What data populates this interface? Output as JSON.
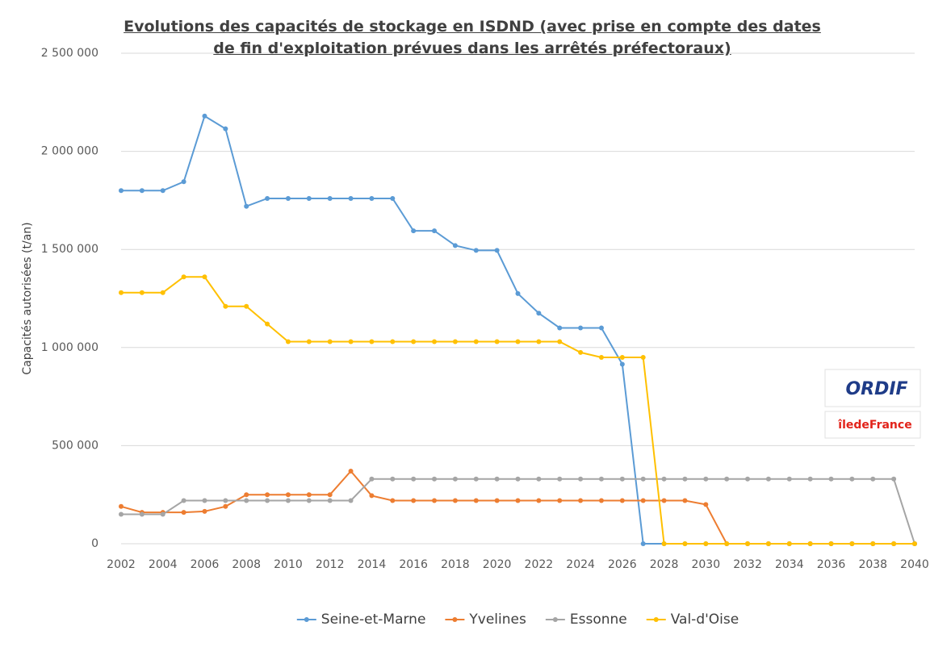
{
  "chart_data": {
    "type": "line",
    "title": "Evolutions des capacités de stockage en ISDND (avec prise en compte des dates de fin d'exploitation prévues dans les arrêtés préfectoraux)",
    "y_label": "Capacités autorisées (t/an)",
    "x": [
      2002,
      2003,
      2004,
      2005,
      2006,
      2007,
      2008,
      2009,
      2010,
      2011,
      2012,
      2013,
      2014,
      2015,
      2016,
      2017,
      2018,
      2019,
      2020,
      2021,
      2022,
      2023,
      2024,
      2025,
      2026,
      2027,
      2028,
      2029,
      2030,
      2031,
      2032,
      2033,
      2034,
      2035,
      2036,
      2037,
      2038,
      2039,
      2040
    ],
    "xlim": [
      2002,
      2040
    ],
    "xticks": [
      2002,
      2004,
      2006,
      2008,
      2010,
      2012,
      2014,
      2016,
      2018,
      2020,
      2022,
      2024,
      2026,
      2028,
      2030,
      2032,
      2034,
      2036,
      2038,
      2040
    ],
    "ylim": [
      0,
      2500000
    ],
    "yticks": [
      0,
      {
        "value": 500000,
        "label": "500 000"
      },
      {
        "value": 1000000,
        "label": "1 000 000"
      },
      {
        "value": 1500000,
        "label": "1 500 000"
      },
      {
        "value": 2000000,
        "label": "2 000 000"
      },
      {
        "value": 2500000,
        "label": "2 500 000"
      }
    ],
    "grid": true,
    "legend": "bottom",
    "series": [
      {
        "name": "Seine-et-Marne",
        "color": "#5b9bd5",
        "values": [
          1800000,
          1800000,
          1800000,
          1845000,
          2180000,
          2115000,
          1720000,
          1760000,
          1760000,
          1760000,
          1760000,
          1760000,
          1760000,
          1760000,
          1595000,
          1595000,
          1520000,
          1495000,
          1495000,
          1275000,
          1175000,
          1100000,
          1100000,
          1100000,
          915000,
          0,
          0,
          0,
          0,
          0,
          0,
          0,
          0,
          0,
          0,
          0,
          0,
          0,
          0
        ]
      },
      {
        "name": "Yvelines",
        "color": "#ed7d31",
        "values": [
          190000,
          160000,
          160000,
          160000,
          165000,
          190000,
          250000,
          250000,
          250000,
          250000,
          250000,
          370000,
          245000,
          220000,
          220000,
          220000,
          220000,
          220000,
          220000,
          220000,
          220000,
          220000,
          220000,
          220000,
          220000,
          220000,
          220000,
          220000,
          200000,
          0,
          0,
          0,
          0,
          0,
          0,
          0,
          0,
          0,
          0
        ]
      },
      {
        "name": "Essonne",
        "color": "#a5a5a5",
        "values": [
          150000,
          150000,
          150000,
          220000,
          220000,
          220000,
          220000,
          220000,
          220000,
          220000,
          220000,
          220000,
          330000,
          330000,
          330000,
          330000,
          330000,
          330000,
          330000,
          330000,
          330000,
          330000,
          330000,
          330000,
          330000,
          330000,
          330000,
          330000,
          330000,
          330000,
          330000,
          330000,
          330000,
          330000,
          330000,
          330000,
          330000,
          330000,
          0
        ]
      },
      {
        "name": "Val-d'Oise",
        "color": "#ffc000",
        "values": [
          1280000,
          1280000,
          1280000,
          1360000,
          1360000,
          1210000,
          1210000,
          1120000,
          1030000,
          1030000,
          1030000,
          1030000,
          1030000,
          1030000,
          1030000,
          1030000,
          1030000,
          1030000,
          1030000,
          1030000,
          1030000,
          1030000,
          975000,
          950000,
          950000,
          950000,
          0,
          0,
          0,
          0,
          0,
          0,
          0,
          0,
          0,
          0,
          0,
          0,
          0
        ]
      }
    ],
    "annotations": [
      "ORDIF",
      "îledeFrance"
    ]
  }
}
